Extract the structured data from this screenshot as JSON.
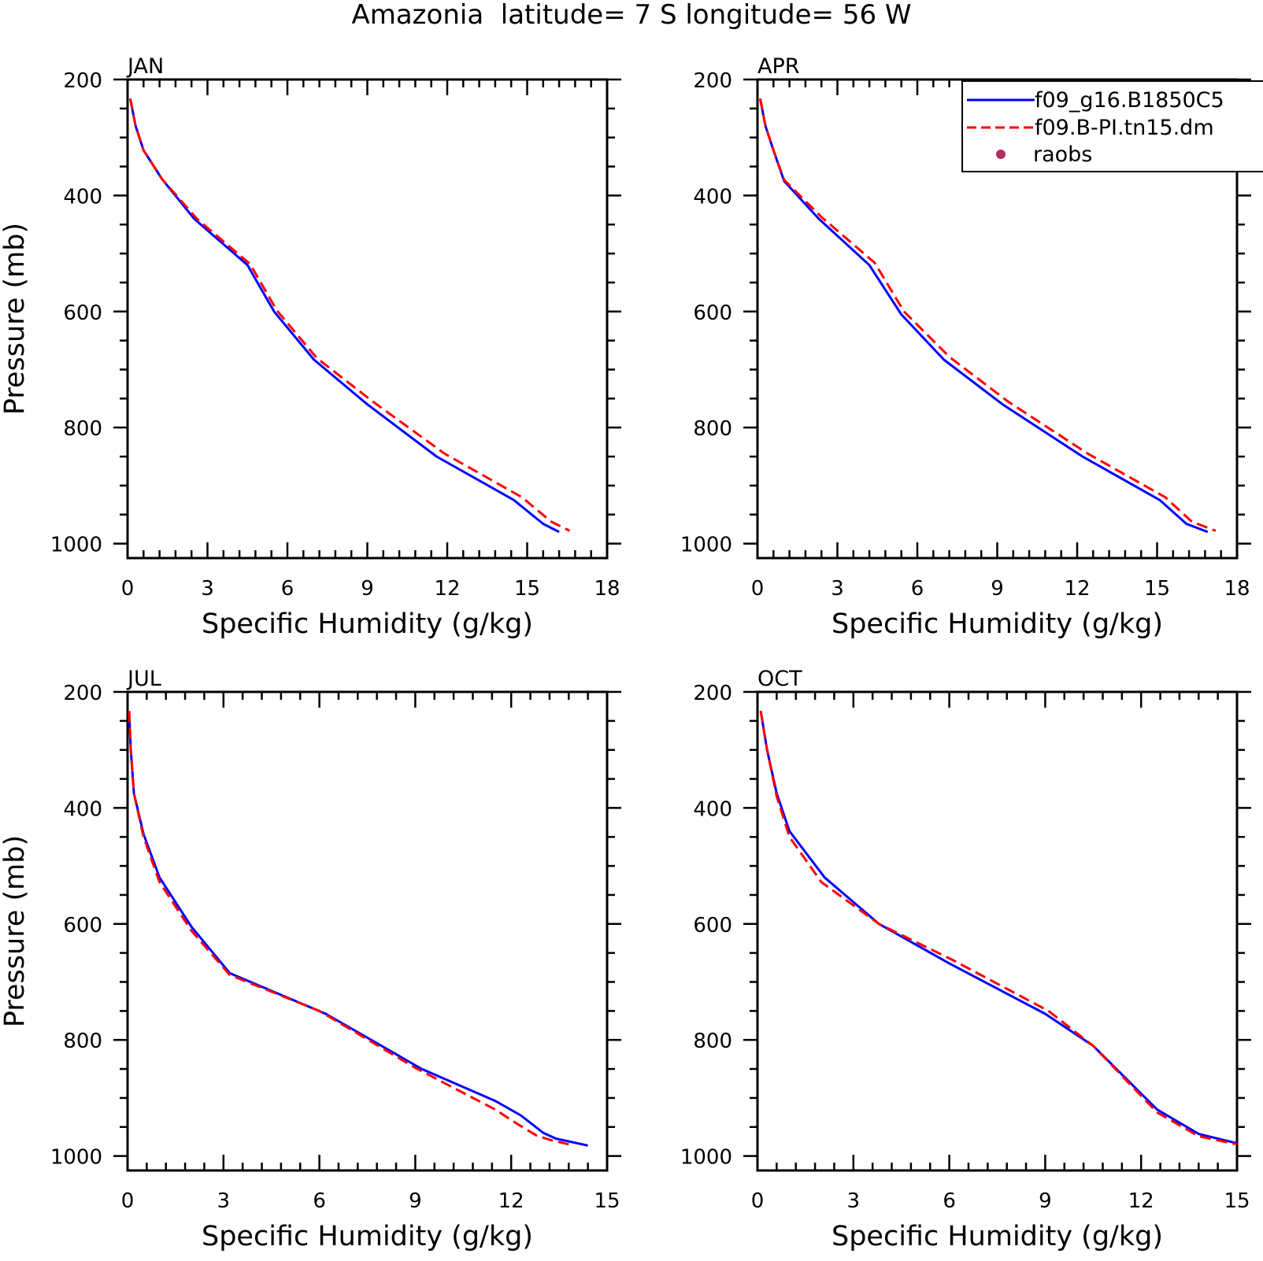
{
  "title": "Amazonia  latitude= 7 S longitude= 56 W",
  "legend": {
    "placement": "top-right",
    "entries": [
      {
        "label": "f09_g16.B1850C5",
        "color": "#0000ff",
        "style": "solid"
      },
      {
        "label": "f09.B-PI.tn15.dm",
        "color": "#ff0000",
        "style": "dashed"
      },
      {
        "label": "raobs",
        "color": "#b03060",
        "style": "dot"
      }
    ]
  },
  "chart_data": [
    {
      "type": "line",
      "panel": "JAN",
      "xlabel": "Specific Humidity (g/kg)",
      "ylabel": "Pressure (mb)",
      "xlim": [
        0,
        18
      ],
      "ylim": [
        200,
        1025
      ],
      "y_inverted": true,
      "xticks": [
        "0",
        "3",
        "6",
        "9",
        "12",
        "15",
        "18"
      ],
      "yticks": [
        "200",
        "400",
        "600",
        "800",
        "1000"
      ],
      "series": [
        {
          "name": "f09_g16.B1850C5",
          "x": [
            0.1,
            0.3,
            0.6,
            1.3,
            2.5,
            4.5,
            5.5,
            7.0,
            9.0,
            11.6,
            14.5,
            15.6,
            16.2
          ],
          "y": [
            233,
            280,
            322,
            372,
            440,
            520,
            600,
            683,
            760,
            850,
            925,
            966,
            980
          ]
        },
        {
          "name": "f09.B-PI.tn15.dm",
          "x": [
            0.1,
            0.3,
            0.6,
            1.3,
            2.6,
            4.6,
            5.6,
            7.1,
            9.2,
            11.9,
            14.8,
            15.9,
            16.6
          ],
          "y": [
            233,
            280,
            322,
            372,
            440,
            518,
            598,
            680,
            755,
            845,
            920,
            962,
            978
          ]
        }
      ]
    },
    {
      "type": "line",
      "panel": "APR",
      "xlabel": "Specific Humidity (g/kg)",
      "ylabel": "",
      "xlim": [
        0,
        18
      ],
      "ylim": [
        200,
        1025
      ],
      "y_inverted": true,
      "xticks": [
        "0",
        "3",
        "6",
        "9",
        "12",
        "15",
        "18"
      ],
      "yticks": [
        "200",
        "400",
        "600",
        "800",
        "1000"
      ],
      "series": [
        {
          "name": "f09_g16.B1850C5",
          "x": [
            0.1,
            0.3,
            0.6,
            1.0,
            2.3,
            4.2,
            5.4,
            7.0,
            9.2,
            12.2,
            15.1,
            16.1,
            16.9
          ],
          "y": [
            233,
            280,
            322,
            375,
            440,
            520,
            605,
            683,
            760,
            850,
            925,
            966,
            980
          ]
        },
        {
          "name": "f09.B-PI.tn15.dm",
          "x": [
            0.1,
            0.3,
            0.6,
            1.0,
            2.4,
            4.4,
            5.5,
            7.2,
            9.4,
            12.4,
            15.3,
            16.3,
            17.2
          ],
          "y": [
            233,
            280,
            322,
            373,
            437,
            516,
            600,
            678,
            755,
            845,
            920,
            962,
            978
          ]
        }
      ]
    },
    {
      "type": "line",
      "panel": "JUL",
      "xlabel": "Specific Humidity (g/kg)",
      "ylabel": "Pressure (mb)",
      "xlim": [
        0,
        15
      ],
      "ylim": [
        200,
        1025
      ],
      "y_inverted": true,
      "xticks": [
        "0",
        "3",
        "6",
        "9",
        "12",
        "15"
      ],
      "yticks": [
        "200",
        "400",
        "600",
        "800",
        "1000"
      ],
      "series": [
        {
          "name": "f09_g16.B1850C5",
          "x": [
            0.05,
            0.1,
            0.2,
            0.5,
            1.0,
            2.0,
            3.2,
            6.2,
            9.2,
            11.5,
            12.3,
            13.0,
            13.4,
            14.4
          ],
          "y": [
            233,
            300,
            375,
            445,
            520,
            605,
            685,
            755,
            850,
            905,
            930,
            960,
            970,
            982
          ]
        },
        {
          "name": "f09.B-PI.tn15.dm",
          "x": [
            0.05,
            0.1,
            0.2,
            0.5,
            1.0,
            2.0,
            3.2,
            6.0,
            9.0,
            11.5,
            12.2,
            12.8,
            13.2,
            13.8
          ],
          "y": [
            233,
            300,
            375,
            450,
            528,
            612,
            688,
            750,
            848,
            920,
            945,
            965,
            972,
            980
          ]
        }
      ]
    },
    {
      "type": "line",
      "panel": "OCT",
      "xlabel": "Specific Humidity (g/kg)",
      "ylabel": "",
      "xlim": [
        0,
        15
      ],
      "ylim": [
        200,
        1025
      ],
      "y_inverted": true,
      "xticks": [
        "0",
        "3",
        "6",
        "9",
        "12",
        "15"
      ],
      "yticks": [
        "200",
        "400",
        "600",
        "800",
        "1000"
      ],
      "series": [
        {
          "name": "f09_g16.B1850C5",
          "x": [
            0.1,
            0.3,
            0.6,
            1.0,
            2.1,
            3.8,
            6.0,
            9.0,
            10.5,
            12.5,
            13.8,
            15.0
          ],
          "y": [
            233,
            300,
            375,
            440,
            520,
            600,
            668,
            755,
            810,
            920,
            962,
            978
          ]
        },
        {
          "name": "f09.B-PI.tn15.dm",
          "x": [
            0.1,
            0.3,
            0.6,
            1.0,
            2.0,
            3.8,
            6.1,
            9.1,
            10.5,
            12.5,
            13.8,
            15.0
          ],
          "y": [
            233,
            300,
            380,
            450,
            528,
            600,
            662,
            750,
            810,
            925,
            966,
            980
          ]
        }
      ]
    }
  ]
}
